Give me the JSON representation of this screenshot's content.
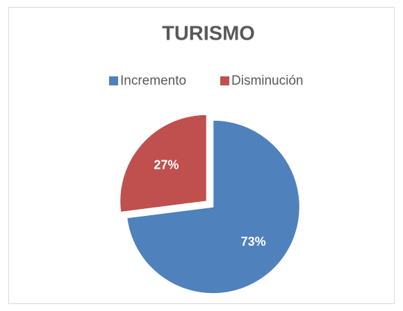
{
  "chart_data": {
    "type": "pie",
    "title": "TURISMO",
    "categories": [
      "Incremento",
      "Disminución"
    ],
    "values": [
      73,
      27
    ],
    "value_labels": [
      "73%",
      "27%"
    ],
    "colors": [
      "#4f81bd",
      "#c0504d"
    ],
    "legend": "top"
  }
}
